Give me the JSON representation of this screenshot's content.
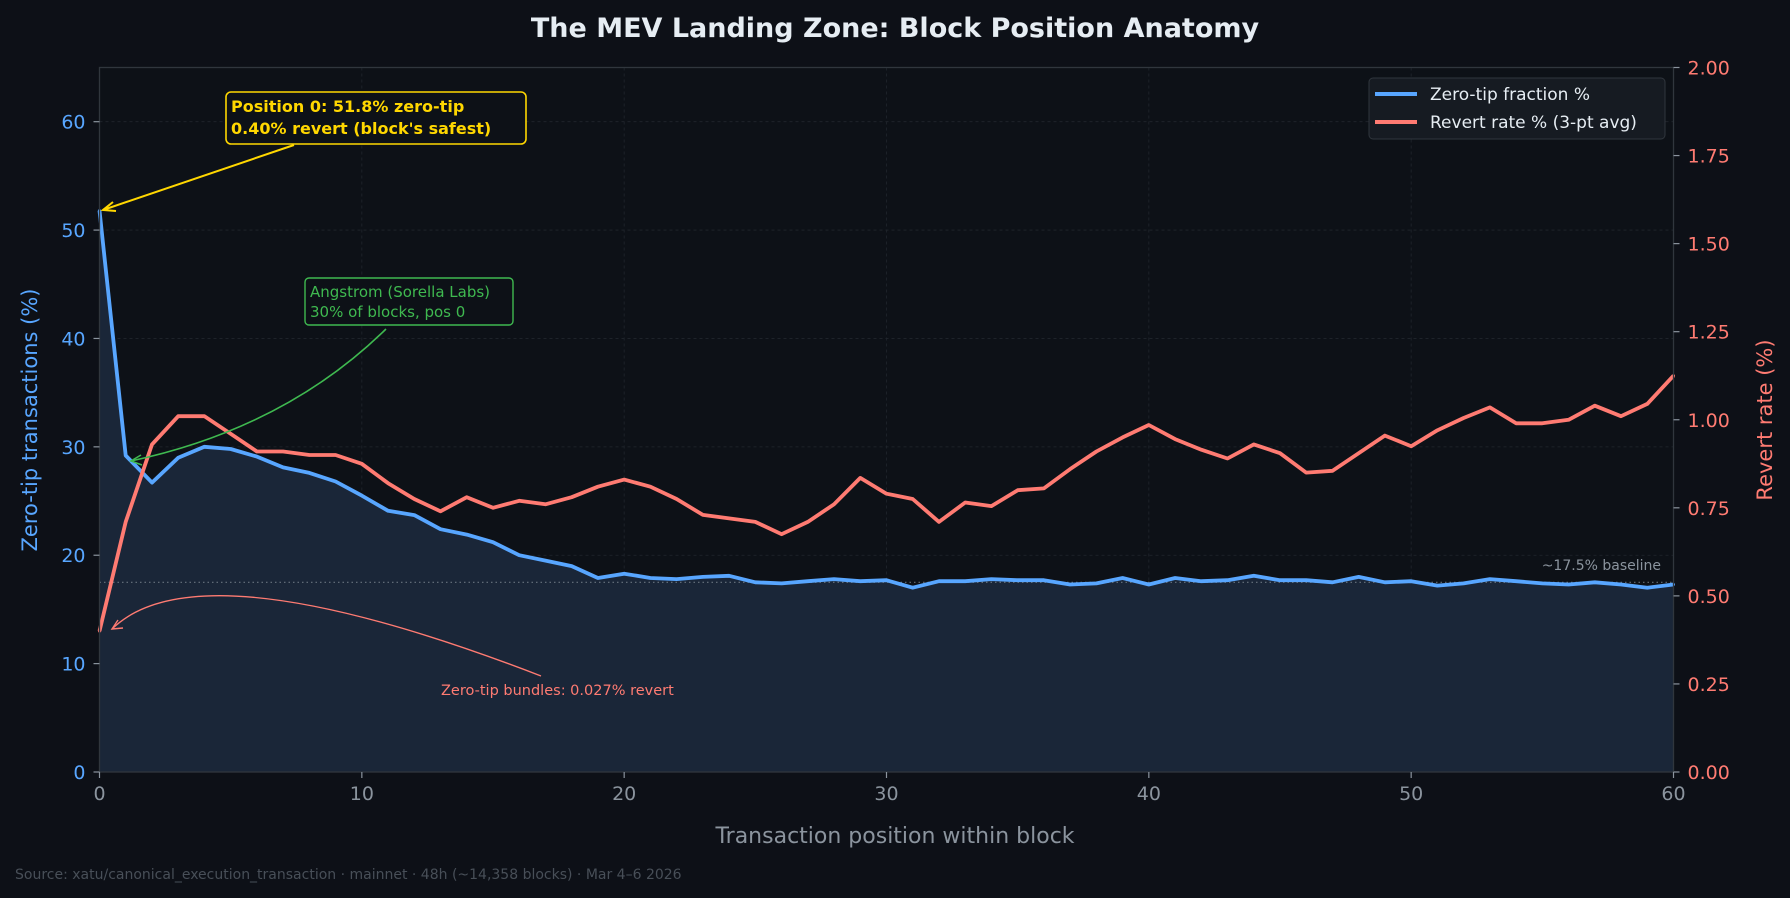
{
  "chart_data": {
    "type": "line",
    "title": "The MEV Landing Zone: Block Position Anatomy",
    "xlabel": "Transaction position within block",
    "ylabel_left": "Zero-tip transactions (%)",
    "ylabel_right": "Revert rate (%)",
    "xlim": [
      0,
      60
    ],
    "ylim_left": [
      0,
      65
    ],
    "ylim_right": [
      0,
      2.0
    ],
    "x_ticks": [
      "0",
      "10",
      "20",
      "30",
      "40",
      "50",
      "60"
    ],
    "y_left_ticks": [
      "0",
      "10",
      "20",
      "30",
      "40",
      "50",
      "60"
    ],
    "y_right_ticks": [
      "0.00",
      "0.25",
      "0.50",
      "0.75",
      "1.00",
      "1.25",
      "1.50",
      "1.75",
      "2.00"
    ],
    "grid": true,
    "legend_position": "top-right",
    "colors": {
      "zero_tip": "#58a6ff",
      "revert": "#ff7b72",
      "fill": "#1a2638",
      "annotation_yellow": "#ffd700",
      "annotation_green": "#3fb950",
      "baseline": "#8b949e"
    },
    "x": [
      0,
      1,
      2,
      3,
      4,
      5,
      6,
      7,
      8,
      9,
      10,
      11,
      12,
      13,
      14,
      15,
      16,
      17,
      18,
      19,
      20,
      21,
      22,
      23,
      24,
      25,
      26,
      27,
      28,
      29,
      30,
      31,
      32,
      33,
      34,
      35,
      36,
      37,
      38,
      39,
      40,
      41,
      42,
      43,
      44,
      45,
      46,
      47,
      48,
      49,
      50,
      51,
      52,
      53,
      54,
      55,
      56,
      57,
      58,
      59,
      60
    ],
    "series": [
      {
        "name": "Zero-tip fraction %",
        "axis": "left",
        "filled": true,
        "values": [
          51.8,
          29.2,
          26.7,
          29.0,
          30.0,
          29.8,
          29.1,
          28.1,
          27.6,
          26.8,
          25.5,
          24.1,
          23.7,
          22.4,
          21.9,
          21.2,
          20.0,
          19.5,
          19.0,
          17.9,
          18.3,
          17.9,
          17.8,
          18.0,
          18.1,
          17.5,
          17.4,
          17.6,
          17.8,
          17.6,
          17.7,
          17.0,
          17.6,
          17.6,
          17.8,
          17.7,
          17.7,
          17.3,
          17.4,
          17.9,
          17.3,
          17.9,
          17.6,
          17.7,
          18.1,
          17.7,
          17.7,
          17.5,
          18.0,
          17.5,
          17.6,
          17.2,
          17.4,
          17.8,
          17.6,
          17.4,
          17.3,
          17.5,
          17.3,
          17.0,
          17.3
        ]
      },
      {
        "name": "Revert rate % (3-pt avg)",
        "axis": "right",
        "values": [
          0.4,
          0.71,
          0.93,
          1.01,
          1.01,
          0.96,
          0.91,
          0.91,
          0.9,
          0.9,
          0.875,
          0.82,
          0.775,
          0.74,
          0.78,
          0.75,
          0.77,
          0.76,
          0.78,
          0.81,
          0.83,
          0.81,
          0.775,
          0.73,
          0.72,
          0.71,
          0.675,
          0.71,
          0.76,
          0.835,
          0.79,
          0.775,
          0.71,
          0.765,
          0.755,
          0.8,
          0.805,
          0.86,
          0.91,
          0.95,
          0.985,
          0.945,
          0.915,
          0.89,
          0.93,
          0.905,
          0.85,
          0.855,
          0.905,
          0.955,
          0.925,
          0.97,
          1.005,
          1.035,
          0.99,
          0.99,
          1.0,
          1.04,
          1.01,
          1.045,
          1.125
        ]
      }
    ],
    "baseline": {
      "value": 17.5,
      "label": "~17.5% baseline"
    },
    "annotations": {
      "position0": [
        "Position 0: 51.8% zero-tip",
        "0.40% revert (block's safest)"
      ],
      "angstrom": [
        "Angstrom (Sorella Labs)",
        "30% of blocks, pos 0"
      ],
      "bundles": "Zero-tip bundles: 0.027% revert"
    },
    "source": "Source: xatu/canonical_execution_transaction · mainnet · 48h (~14,358 blocks) · Mar 4–6 2026"
  }
}
